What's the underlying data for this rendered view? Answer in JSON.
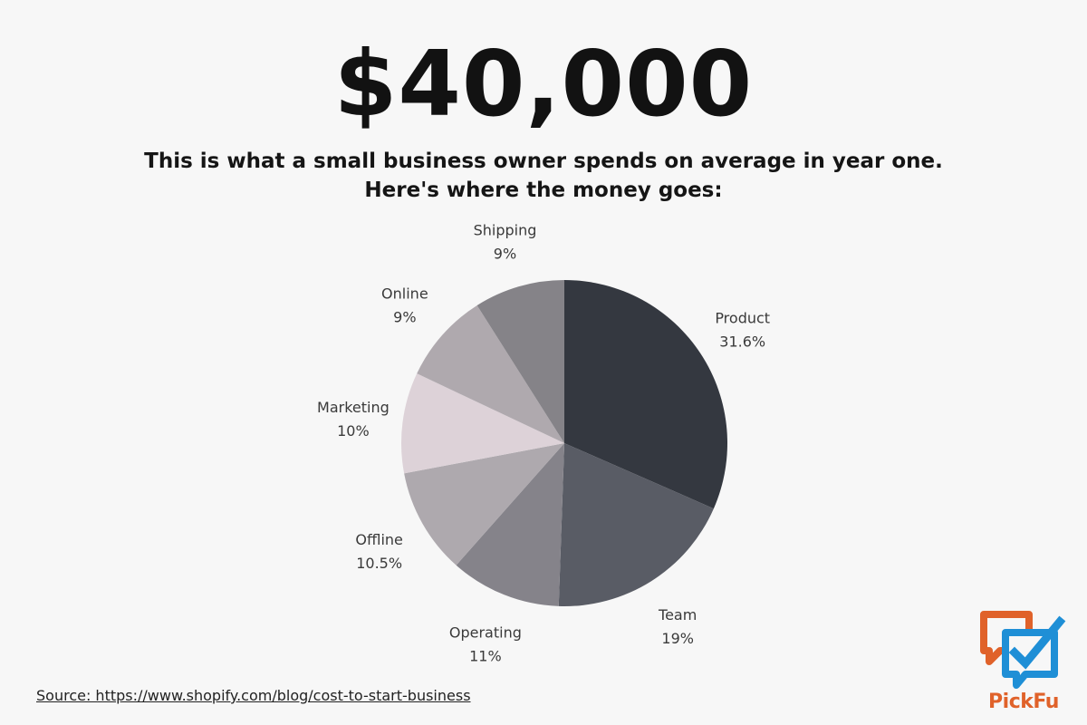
{
  "headline": "$40,000",
  "subtitle_lines": [
    "This is what a small business owner spends on average in year one.",
    "Here's where the money goes:"
  ],
  "source_text": "Source: https://www.shopify.com/blog/cost-to-start-business",
  "logo_text": "PickFu",
  "colors": {
    "background": "#f7f7f7",
    "logo_orange": "#e0622a",
    "logo_blue": "#1f8fd6"
  },
  "chart_data": {
    "type": "pie",
    "title": "",
    "slices": [
      {
        "label": "Product",
        "value": 31.6,
        "display": "31.6%",
        "color": "#343840"
      },
      {
        "label": "Team",
        "value": 19,
        "display": "19%",
        "color": "#595c65"
      },
      {
        "label": "Operating",
        "value": 11,
        "display": "11%",
        "color": "#85838a"
      },
      {
        "label": "Offline",
        "value": 10.5,
        "display": "10.5%",
        "color": "#aea9ae"
      },
      {
        "label": "Marketing",
        "value": 10,
        "display": "10%",
        "color": "#ddd2d8"
      },
      {
        "label": "Online",
        "value": 9,
        "display": "9%",
        "color": "#afa9ae"
      },
      {
        "label": "Shipping",
        "value": 9,
        "display": "9%",
        "color": "#858388"
      }
    ]
  }
}
